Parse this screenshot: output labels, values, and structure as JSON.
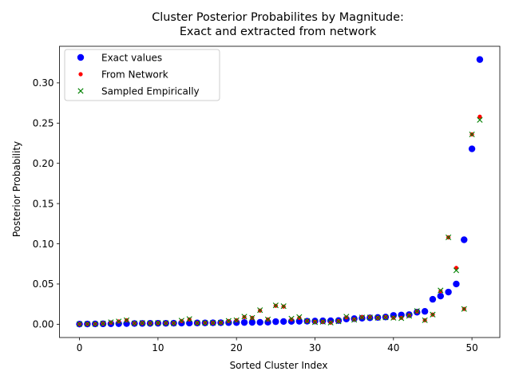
{
  "chart_data": {
    "type": "scatter",
    "title_line1": "Cluster Posterior Probabilites by Magnitude:",
    "title_line2": "Exact and extracted from network",
    "xlabel": "Sorted Cluster Index",
    "ylabel": "Posterior Probability",
    "xlim": [
      -2.55,
      53.55
    ],
    "ylim": [
      -0.0165,
      0.3455
    ],
    "xticks": [
      0,
      10,
      20,
      30,
      40,
      50
    ],
    "xtick_labels": [
      "0",
      "10",
      "20",
      "30",
      "40",
      "50"
    ],
    "yticks": [
      0.0,
      0.05,
      0.1,
      0.15,
      0.2,
      0.25,
      0.3
    ],
    "ytick_labels": [
      "0.00",
      "0.05",
      "0.10",
      "0.15",
      "0.20",
      "0.25",
      "0.30"
    ],
    "grid": false,
    "legend_position": "upper-left",
    "x": [
      0,
      1,
      2,
      3,
      4,
      5,
      6,
      7,
      8,
      9,
      10,
      11,
      12,
      13,
      14,
      15,
      16,
      17,
      18,
      19,
      20,
      21,
      22,
      23,
      24,
      25,
      26,
      27,
      28,
      29,
      30,
      31,
      32,
      33,
      34,
      35,
      36,
      37,
      38,
      39,
      40,
      41,
      42,
      43,
      44,
      45,
      46,
      47,
      48,
      49,
      50,
      51
    ],
    "series": [
      {
        "name": "Exact values",
        "marker": "circle",
        "color": "#0000ff",
        "values": [
          0.0002,
          0.0003,
          0.0004,
          0.0005,
          0.0006,
          0.0007,
          0.0008,
          0.0009,
          0.001,
          0.0011,
          0.0012,
          0.0012,
          0.0013,
          0.0014,
          0.0015,
          0.0016,
          0.0017,
          0.0018,
          0.0019,
          0.002,
          0.0021,
          0.0022,
          0.0023,
          0.0024,
          0.0025,
          0.0032,
          0.0034,
          0.0035,
          0.0037,
          0.0038,
          0.004,
          0.0042,
          0.0044,
          0.0046,
          0.0065,
          0.007,
          0.0075,
          0.008,
          0.0085,
          0.009,
          0.011,
          0.0115,
          0.012,
          0.015,
          0.016,
          0.031,
          0.035,
          0.04,
          0.05,
          0.105,
          0.218,
          0.329
        ]
      },
      {
        "name": "From Network",
        "marker": "dot",
        "color": "#ff0000",
        "values": [
          0.0002,
          0.0003,
          0.0004,
          0.001,
          0.002,
          0.0035,
          0.005,
          0.0012,
          0.0015,
          0.0012,
          0.0015,
          0.0014,
          0.0013,
          0.004,
          0.006,
          0.0016,
          0.0017,
          0.0018,
          0.002,
          0.004,
          0.005,
          0.009,
          0.008,
          0.017,
          0.006,
          0.023,
          0.022,
          0.006,
          0.008,
          0.004,
          0.003,
          0.003,
          0.002,
          0.004,
          0.0085,
          0.006,
          0.009,
          0.009,
          0.008,
          0.009,
          0.008,
          0.008,
          0.011,
          0.016,
          0.005,
          0.012,
          0.041,
          0.108,
          0.07,
          0.019,
          0.236,
          0.258
        ]
      },
      {
        "name": "Sampled Empirically",
        "marker": "x",
        "color": "#008000",
        "values": [
          0.0003,
          0.0004,
          0.0003,
          0.001,
          0.0025,
          0.0035,
          0.005,
          0.0012,
          0.0016,
          0.0013,
          0.0016,
          0.0014,
          0.0012,
          0.0045,
          0.0065,
          0.0015,
          0.0016,
          0.0018,
          0.002,
          0.0042,
          0.005,
          0.0095,
          0.008,
          0.0175,
          0.006,
          0.0235,
          0.0225,
          0.007,
          0.009,
          0.004,
          0.0025,
          0.003,
          0.002,
          0.0035,
          0.0095,
          0.0055,
          0.0085,
          0.0085,
          0.008,
          0.0085,
          0.008,
          0.0075,
          0.0105,
          0.0165,
          0.005,
          0.012,
          0.042,
          0.108,
          0.067,
          0.019,
          0.236,
          0.254
        ]
      }
    ]
  }
}
